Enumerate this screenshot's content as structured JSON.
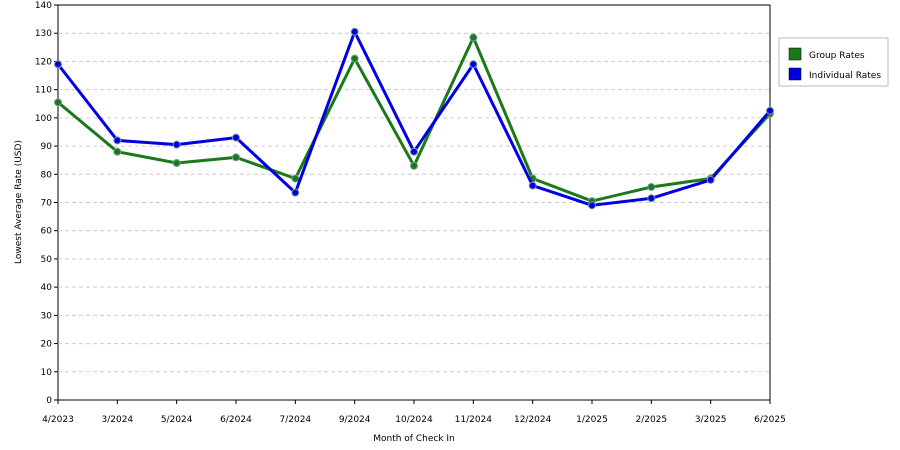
{
  "chart_data": {
    "type": "line",
    "x_label": "Month of Check In",
    "y_label": "Lowest Average Rate (USD)",
    "categories": [
      "4/2023",
      "3/2024",
      "5/2024",
      "6/2024",
      "7/2024",
      "9/2024",
      "10/2024",
      "11/2024",
      "12/2024",
      "1/2025",
      "2/2025",
      "3/2025",
      "6/2025"
    ],
    "series": [
      {
        "name": "Group Rates",
        "color": "#1a7a1a",
        "values": [
          105.5,
          88,
          84,
          86,
          78.5,
          121,
          83,
          128.5,
          78.5,
          70.5,
          75.5,
          78.5,
          101.5
        ]
      },
      {
        "name": "Individual Rates",
        "color": "#0000e0",
        "values": [
          119,
          92,
          90.5,
          93,
          73.5,
          130.5,
          88,
          119,
          76,
          69,
          71.5,
          78,
          102.5
        ]
      }
    ],
    "ylim": [
      0,
      140
    ],
    "yticks": [
      0,
      10,
      20,
      30,
      40,
      50,
      60,
      70,
      80,
      90,
      100,
      110,
      120,
      130,
      140
    ],
    "grid": true,
    "legend": "right"
  }
}
